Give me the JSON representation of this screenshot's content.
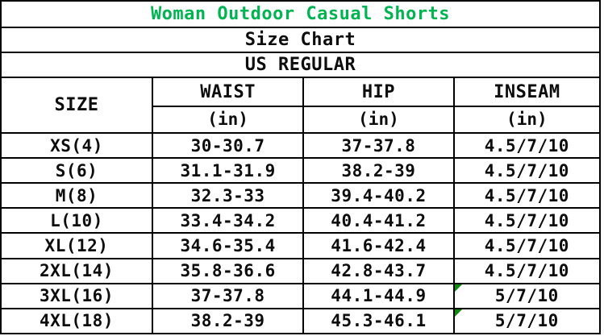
{
  "table": {
    "title": "Woman Outdoor Casual Shorts",
    "title_color": "#00B452",
    "subtitle": "Size Chart",
    "region": "US REGULAR",
    "flag_color": "#118811",
    "columns": [
      {
        "label": "SIZE",
        "unit": ""
      },
      {
        "label": "WAIST",
        "unit": "(in)"
      },
      {
        "label": "HIP",
        "unit": "(in)"
      },
      {
        "label": "INSEAM",
        "unit": "(in)"
      }
    ],
    "rows": [
      {
        "size": "XS(4)",
        "waist": "30-30.7",
        "hip": "37-37.8",
        "inseam": "4.5/7/10"
      },
      {
        "size": "S(6)",
        "waist": "31.1-31.9",
        "hip": "38.2-39",
        "inseam": "4.5/7/10"
      },
      {
        "size": "M(8)",
        "waist": "32.3-33",
        "hip": "39.4-40.2",
        "inseam": "4.5/7/10"
      },
      {
        "size": "L(10)",
        "waist": "33.4-34.2",
        "hip": "40.4-41.2",
        "inseam": "4.5/7/10"
      },
      {
        "size": "XL(12)",
        "waist": "34.6-35.4",
        "hip": "41.6-42.4",
        "inseam": "4.5/7/10"
      },
      {
        "size": "2XL(14)",
        "waist": "35.8-36.6",
        "hip": "42.8-43.7",
        "inseam": "4.5/7/10"
      },
      {
        "size": "3XL(16)",
        "waist": "37-37.8",
        "hip": "44.1-44.9",
        "inseam": "5/7/10"
      },
      {
        "size": "4XL(18)",
        "waist": "38.2-39",
        "hip": "45.3-46.1",
        "inseam": "5/7/10"
      }
    ]
  },
  "chart_data": {
    "type": "table",
    "title": "Woman Outdoor Casual Shorts",
    "subtitle": "Size Chart",
    "fit": "US REGULAR",
    "columns": [
      "SIZE",
      "WAIST (in)",
      "HIP (in)",
      "INSEAM (in)"
    ],
    "rows": [
      [
        "XS(4)",
        "30-30.7",
        "37-37.8",
        "4.5/7/10"
      ],
      [
        "S(6)",
        "31.1-31.9",
        "38.2-39",
        "4.5/7/10"
      ],
      [
        "M(8)",
        "32.3-33",
        "39.4-40.2",
        "4.5/7/10"
      ],
      [
        "L(10)",
        "33.4-34.2",
        "40.4-41.2",
        "4.5/7/10"
      ],
      [
        "XL(12)",
        "34.6-35.4",
        "41.6-42.4",
        "4.5/7/10"
      ],
      [
        "2XL(14)",
        "35.8-36.6",
        "42.8-43.7",
        "4.5/7/10"
      ],
      [
        "3XL(16)",
        "37-37.8",
        "44.1-44.9",
        "5/7/10"
      ],
      [
        "4XL(18)",
        "38.2-39",
        "45.3-46.1",
        "5/7/10"
      ]
    ]
  }
}
